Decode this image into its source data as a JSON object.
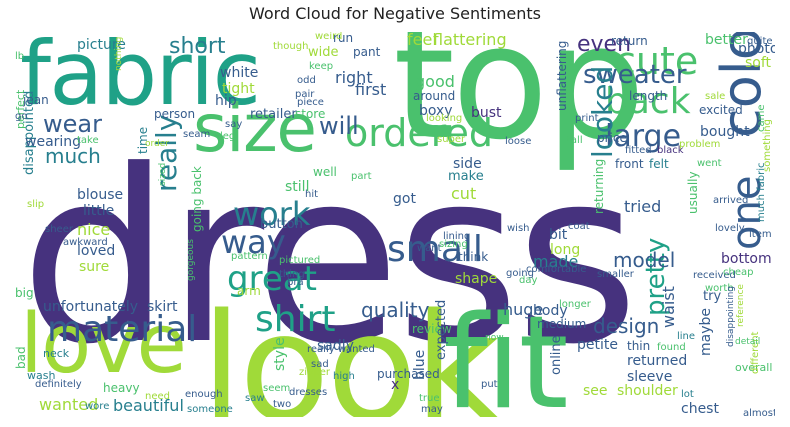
{
  "title": "Word Cloud for Negative Sentiments",
  "palette": {
    "indigo": "#46327e",
    "blue": "#365c8d",
    "teal": "#277f8e",
    "green": "#1fa187",
    "lime": "#4ac16d",
    "yellowgreen": "#a0da39",
    "yellow": "#fde725"
  },
  "words": [
    {
      "text": "dress",
      "color": "#46327e"
    },
    {
      "text": "top",
      "color": "#4ac16d"
    },
    {
      "text": "fabric",
      "color": "#1fa187"
    },
    {
      "text": "look",
      "color": "#a0da39"
    },
    {
      "text": "fit",
      "color": "#4ac16d"
    },
    {
      "text": "love",
      "color": "#a0da39"
    },
    {
      "text": "size",
      "color": "#4ac16d"
    },
    {
      "text": "color",
      "color": "#365c8d"
    },
    {
      "text": "cute",
      "color": "#4ac16d"
    },
    {
      "text": "back",
      "color": "#4ac16d"
    },
    {
      "text": "ordered",
      "color": "#4ac16d"
    },
    {
      "text": "small",
      "color": "#365c8d"
    },
    {
      "text": "one",
      "color": "#365c8d"
    },
    {
      "text": "material",
      "color": "#365c8d"
    },
    {
      "text": "shirt",
      "color": "#1fa187"
    },
    {
      "text": "great",
      "color": "#1fa187"
    },
    {
      "text": "work",
      "color": "#277f8e"
    },
    {
      "text": "way",
      "color": "#365c8d"
    },
    {
      "text": "large",
      "color": "#365c8d"
    },
    {
      "text": "sweater",
      "color": "#365c8d"
    },
    {
      "text": "really",
      "color": "#277f8e"
    },
    {
      "text": "looked",
      "color": "#277f8e"
    },
    {
      "text": "pretty",
      "color": "#1fa187"
    },
    {
      "text": "short",
      "color": "#277f8e"
    },
    {
      "text": "even",
      "color": "#46327e"
    },
    {
      "text": "wear",
      "color": "#365c8d"
    },
    {
      "text": "much",
      "color": "#277f8e"
    },
    {
      "text": "will",
      "color": "#365c8d"
    },
    {
      "text": "quality",
      "color": "#365c8d"
    },
    {
      "text": "model",
      "color": "#365c8d"
    },
    {
      "text": "design",
      "color": "#365c8d"
    },
    {
      "text": "feel",
      "color": "#a0da39"
    },
    {
      "text": "flattering",
      "color": "#a0da39"
    },
    {
      "text": "picture",
      "color": "#277f8e"
    },
    {
      "text": "wanted",
      "color": "#a0da39"
    },
    {
      "text": "beautiful",
      "color": "#277f8e"
    },
    {
      "text": "made",
      "color": "#277f8e"
    },
    {
      "text": "huge",
      "color": "#365c8d"
    },
    {
      "text": "unfortunately",
      "color": "#365c8d"
    },
    {
      "text": "skirt",
      "color": "#365c8d"
    },
    {
      "text": "nice",
      "color": "#a0da39"
    },
    {
      "text": "loved",
      "color": "#365c8d"
    },
    {
      "text": "sure",
      "color": "#a0da39"
    },
    {
      "text": "little",
      "color": "#365c8d"
    },
    {
      "text": "blouse",
      "color": "#365c8d"
    },
    {
      "text": "disappointed",
      "color": "#277f8e"
    },
    {
      "text": "wearing",
      "color": "#365c8d"
    },
    {
      "text": "retailer",
      "color": "#365c8d"
    },
    {
      "text": "button",
      "color": "#365c8d"
    },
    {
      "text": "tried",
      "color": "#365c8d"
    },
    {
      "text": "bought",
      "color": "#365c8d"
    },
    {
      "text": "bottom",
      "color": "#46327e"
    },
    {
      "text": "waist",
      "color": "#365c8d"
    },
    {
      "text": "maybe",
      "color": "#365c8d"
    },
    {
      "text": "returned",
      "color": "#365c8d"
    },
    {
      "text": "sleeve",
      "color": "#365c8d"
    },
    {
      "text": "shoulder",
      "color": "#a0da39"
    },
    {
      "text": "chest",
      "color": "#365c8d"
    },
    {
      "text": "see",
      "color": "#a0da39"
    },
    {
      "text": "online",
      "color": "#365c8d"
    },
    {
      "text": "petite",
      "color": "#365c8d"
    },
    {
      "text": "medium",
      "color": "#365c8d"
    },
    {
      "text": "review",
      "color": "#4ac16d"
    },
    {
      "text": "sadly",
      "color": "#365c8d"
    },
    {
      "text": "style",
      "color": "#4ac16d"
    },
    {
      "text": "x",
      "color": "#46327e"
    },
    {
      "text": "blue",
      "color": "#365c8d"
    },
    {
      "text": "expected",
      "color": "#365c8d"
    },
    {
      "text": "purchased",
      "color": "#365c8d"
    },
    {
      "text": "unflattering",
      "color": "#365c8d"
    },
    {
      "text": "returning",
      "color": "#4ac16d"
    },
    {
      "text": "price",
      "color": "#365c8d"
    },
    {
      "text": "front",
      "color": "#365c8d"
    },
    {
      "text": "length",
      "color": "#365c8d"
    },
    {
      "text": "felt",
      "color": "#277f8e"
    },
    {
      "text": "excited",
      "color": "#365c8d"
    },
    {
      "text": "usually",
      "color": "#4ac16d"
    },
    {
      "text": "try",
      "color": "#365c8d"
    },
    {
      "text": "cut",
      "color": "#a0da39"
    },
    {
      "text": "make",
      "color": "#277f8e"
    },
    {
      "text": "bit",
      "color": "#365c8d"
    },
    {
      "text": "long",
      "color": "#a0da39"
    },
    {
      "text": "think",
      "color": "#365c8d"
    },
    {
      "text": "shape",
      "color": "#a0da39"
    },
    {
      "text": "body",
      "color": "#365c8d"
    },
    {
      "text": "side",
      "color": "#365c8d"
    },
    {
      "text": "still",
      "color": "#4ac16d"
    },
    {
      "text": "got",
      "color": "#365c8d"
    },
    {
      "text": "first",
      "color": "#365c8d"
    },
    {
      "text": "right",
      "color": "#365c8d"
    },
    {
      "text": "store",
      "color": "#4ac16d"
    },
    {
      "text": "well",
      "color": "#4ac16d"
    },
    {
      "text": "white",
      "color": "#365c8d"
    },
    {
      "text": "tight",
      "color": "#a0da39"
    },
    {
      "text": "hip",
      "color": "#365c8d"
    },
    {
      "text": "person",
      "color": "#365c8d"
    },
    {
      "text": "good",
      "color": "#4ac16d"
    },
    {
      "text": "around",
      "color": "#365c8d"
    },
    {
      "text": "boxy",
      "color": "#365c8d"
    },
    {
      "text": "bust",
      "color": "#46327e"
    },
    {
      "text": "run",
      "color": "#365c8d"
    },
    {
      "text": "wide",
      "color": "#a0da39"
    },
    {
      "text": "pant",
      "color": "#365c8d"
    },
    {
      "text": "return",
      "color": "#365c8d"
    },
    {
      "text": "better",
      "color": "#4ac16d"
    },
    {
      "text": "photo",
      "color": "#365c8d"
    },
    {
      "text": "soft",
      "color": "#a0da39"
    },
    {
      "text": "jean",
      "color": "#365c8d"
    },
    {
      "text": "perfect",
      "color": "#4ac16d"
    },
    {
      "text": "time",
      "color": "#277f8e"
    },
    {
      "text": "going back",
      "color": "#4ac16d"
    },
    {
      "text": "arm",
      "color": "#a0da39"
    },
    {
      "text": "big",
      "color": "#4ac16d"
    },
    {
      "text": "bad",
      "color": "#4ac16d"
    },
    {
      "text": "wash",
      "color": "#277f8e"
    },
    {
      "text": "definitely",
      "color": "#365c8d"
    },
    {
      "text": "heavy",
      "color": "#4ac16d"
    },
    {
      "text": "neck",
      "color": "#277f8e"
    },
    {
      "text": "wore",
      "color": "#277f8e"
    },
    {
      "text": "need",
      "color": "#a0da39"
    },
    {
      "text": "enough",
      "color": "#365c8d"
    },
    {
      "text": "someone",
      "color": "#277f8e"
    },
    {
      "text": "saw",
      "color": "#277f8e"
    },
    {
      "text": "seem",
      "color": "#4ac16d"
    },
    {
      "text": "two",
      "color": "#365c8d"
    },
    {
      "text": "zipper",
      "color": "#a0da39"
    },
    {
      "text": "high",
      "color": "#277f8e"
    },
    {
      "text": "dresses",
      "color": "#365c8d"
    },
    {
      "text": "really wanted",
      "color": "#365c8d"
    },
    {
      "text": "sad",
      "color": "#365c8d"
    },
    {
      "text": "true",
      "color": "#4ac16d"
    },
    {
      "text": "put",
      "color": "#365c8d"
    },
    {
      "text": "thin",
      "color": "#365c8d"
    },
    {
      "text": "found",
      "color": "#4ac16d"
    },
    {
      "text": "line",
      "color": "#277f8e"
    },
    {
      "text": "may",
      "color": "#365c8d"
    },
    {
      "text": "lot",
      "color": "#277f8e"
    },
    {
      "text": "overall",
      "color": "#4ac16d"
    },
    {
      "text": "almost",
      "color": "#365c8d"
    },
    {
      "text": "different",
      "color": "#a0da39"
    },
    {
      "text": "smaller",
      "color": "#365c8d"
    },
    {
      "text": "longer",
      "color": "#4ac16d"
    },
    {
      "text": "going",
      "color": "#365c8d"
    },
    {
      "text": "comfortable",
      "color": "#365c8d"
    },
    {
      "text": "received",
      "color": "#365c8d"
    },
    {
      "text": "cheap",
      "color": "#4ac16d"
    },
    {
      "text": "worth",
      "color": "#4ac16d"
    },
    {
      "text": "lovely",
      "color": "#365c8d"
    },
    {
      "text": "item",
      "color": "#365c8d"
    },
    {
      "text": "much fabric",
      "color": "#277f8e"
    },
    {
      "text": "something",
      "color": "#a0da39"
    },
    {
      "text": "went",
      "color": "#4ac16d"
    },
    {
      "text": "fitted",
      "color": "#365c8d"
    },
    {
      "text": "black",
      "color": "#46327e"
    },
    {
      "text": "problem",
      "color": "#a0da39"
    },
    {
      "text": "came",
      "color": "#4ac16d"
    },
    {
      "text": "print",
      "color": "#365c8d"
    },
    {
      "text": "tall",
      "color": "#4ac16d"
    },
    {
      "text": "loose",
      "color": "#365c8d"
    },
    {
      "text": "super",
      "color": "#a0da39"
    },
    {
      "text": "looking",
      "color": "#a0da39"
    },
    {
      "text": "sale",
      "color": "#a0da39"
    },
    {
      "text": "quite",
      "color": "#365c8d"
    },
    {
      "text": "weird",
      "color": "#a0da39"
    },
    {
      "text": "keep",
      "color": "#4ac16d"
    },
    {
      "text": "odd",
      "color": "#365c8d"
    },
    {
      "text": "pair",
      "color": "#365c8d"
    },
    {
      "text": "piece",
      "color": "#365c8d"
    },
    {
      "text": "say",
      "color": "#365c8d"
    },
    {
      "text": "seam",
      "color": "#365c8d"
    },
    {
      "text": "leg",
      "color": "#4ac16d"
    },
    {
      "text": "take",
      "color": "#4ac16d"
    },
    {
      "text": "slip",
      "color": "#a0da39"
    },
    {
      "text": "sheer",
      "color": "#365c8d"
    },
    {
      "text": "awkward",
      "color": "#365c8d"
    },
    {
      "text": "pattern",
      "color": "#4ac16d"
    },
    {
      "text": "pictured",
      "color": "#4ac16d"
    },
    {
      "text": "thing",
      "color": "#365c8d"
    },
    {
      "text": "bra",
      "color": "#365c8d"
    },
    {
      "text": "part",
      "color": "#4ac16d"
    },
    {
      "text": "hit",
      "color": "#365c8d"
    },
    {
      "text": "want",
      "color": "#365c8d"
    },
    {
      "text": "wish",
      "color": "#365c8d"
    },
    {
      "text": "lining",
      "color": "#365c8d"
    },
    {
      "text": "sizing",
      "color": "#4ac16d"
    },
    {
      "text": "coat",
      "color": "#365c8d"
    },
    {
      "text": "day",
      "color": "#4ac16d"
    },
    {
      "text": "arrived",
      "color": "#365c8d"
    },
    {
      "text": "nothing",
      "color": "#a0da39"
    },
    {
      "text": "lb",
      "color": "#4ac16d"
    },
    {
      "text": "go",
      "color": "#365c8d"
    },
    {
      "text": "though",
      "color": "#a0da39"
    },
    {
      "text": "order",
      "color": "#a0da39"
    },
    {
      "text": "now",
      "color": "#4ac16d"
    },
    {
      "text": "detail",
      "color": "#4ac16d"
    },
    {
      "text": "disappointing",
      "color": "#365c8d"
    },
    {
      "text": "reference",
      "color": "#a0da39"
    },
    {
      "text": "gorgeous",
      "color": "#4ac16d"
    },
    {
      "text": "sized",
      "color": "#4ac16d"
    }
  ]
}
